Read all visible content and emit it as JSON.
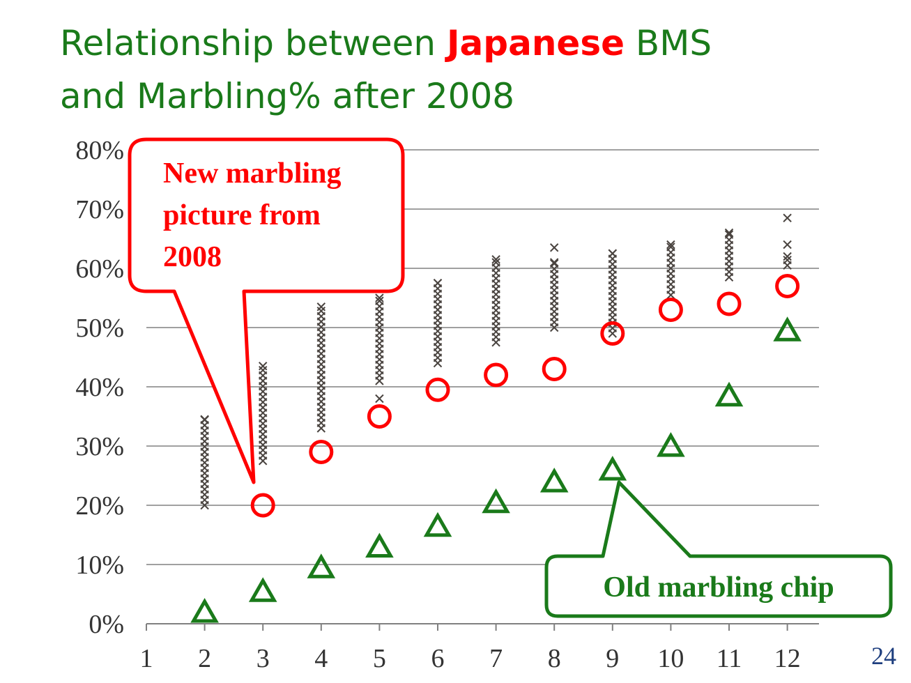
{
  "title": {
    "line1_before": "Relationship between ",
    "line1_highlight": "Japanese",
    "line1_after": " BMS",
    "line2": "and Marbling% after 2008"
  },
  "page_number": "24",
  "colors": {
    "title": "#1a7a1a",
    "highlight": "#ff0000",
    "new_marbling": "#ff0000",
    "old_chip": "#1a7a1a",
    "samples": "#4a4440",
    "grid": "#808080"
  },
  "callouts": {
    "new": [
      "New marbling",
      "picture from",
      "2008"
    ],
    "old": "Old marbling chip"
  },
  "chart_data": {
    "type": "scatter",
    "xlim": [
      1,
      12.5
    ],
    "ylim": [
      0,
      80
    ],
    "x_ticks": [
      "1",
      "2",
      "3",
      "4",
      "5",
      "6",
      "7",
      "8",
      "9",
      "10",
      "11",
      "12"
    ],
    "y_ticks": [
      "0%",
      "10%",
      "20%",
      "30%",
      "40%",
      "50%",
      "60%",
      "70%",
      "80%"
    ],
    "grid": true,
    "series": [
      {
        "marker": "circle",
        "color": "#ff0000",
        "x": [
          3,
          4,
          5,
          6,
          7,
          8,
          9,
          10,
          11,
          12
        ],
        "y": [
          20,
          29,
          35,
          39.5,
          42,
          43,
          49,
          53,
          54,
          57
        ]
      },
      {
        "marker": "triangle",
        "color": "#1a7a1a",
        "x": [
          2,
          3,
          4,
          5,
          6,
          7,
          8,
          9,
          10,
          11,
          12
        ],
        "y": [
          2,
          5.5,
          9.5,
          13,
          16.5,
          20.5,
          24,
          26,
          30,
          38.5,
          49.5
        ]
      },
      {
        "marker": "x",
        "color": "#4a4440",
        "ranges": [
          {
            "x": 2,
            "min": 20,
            "max": 34.5,
            "outliers": []
          },
          {
            "x": 3,
            "min": 27.5,
            "max": 43.5,
            "outliers": []
          },
          {
            "x": 4,
            "min": 33,
            "max": 53.5,
            "outliers": []
          },
          {
            "x": 5,
            "min": 41,
            "max": 55,
            "outliers": [
              38
            ]
          },
          {
            "x": 6,
            "min": 44,
            "max": 57.5,
            "outliers": []
          },
          {
            "x": 7,
            "min": 47.5,
            "max": 61.5,
            "outliers": []
          },
          {
            "x": 8,
            "min": 50,
            "max": 61,
            "outliers": [
              63.5
            ]
          },
          {
            "x": 9,
            "min": 49,
            "max": 62.5,
            "outliers": []
          },
          {
            "x": 10,
            "min": 55.5,
            "max": 64,
            "outliers": []
          },
          {
            "x": 11,
            "min": 58.5,
            "max": 66,
            "outliers": []
          },
          {
            "x": 12,
            "min": 60.5,
            "max": 62,
            "outliers": [
              64,
              68.5
            ]
          }
        ]
      }
    ]
  }
}
